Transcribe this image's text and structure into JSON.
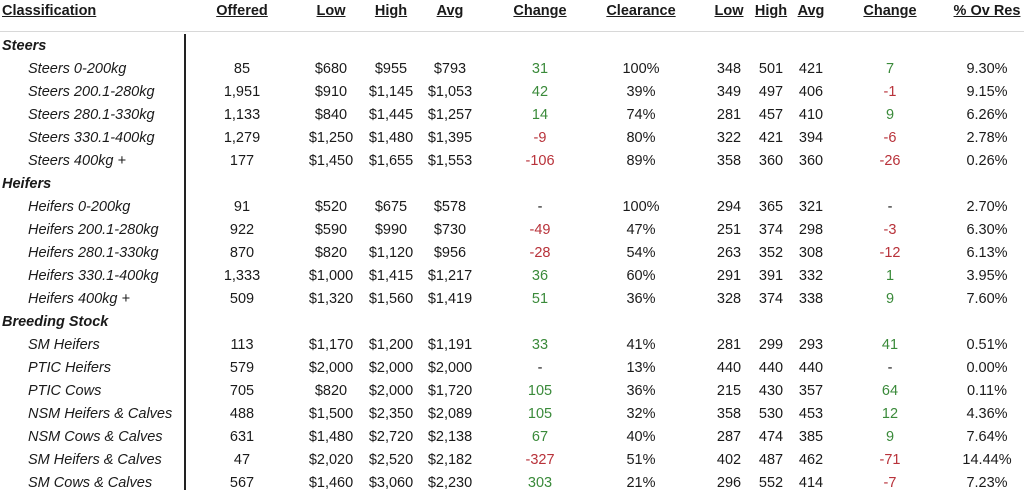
{
  "headers": {
    "classification": "Classification",
    "offered": "Offered",
    "low": "Low",
    "high": "High",
    "avg": "Avg",
    "change": "Change",
    "clearance": "Clearance",
    "ckg_low": "Low",
    "ckg_high": "High",
    "ckg_avg": "Avg",
    "ckg_change": "Change",
    "ov_res": "% Ov Res"
  },
  "rows": [
    {
      "type": "section",
      "name": "Steers"
    },
    {
      "type": "item",
      "name": "Steers 0-200kg",
      "offered": "85",
      "low": "$680",
      "high": "$955",
      "avg": "$793",
      "change": "31",
      "clearance": "100%",
      "ckg_low": "348",
      "ckg_high": "501",
      "ckg_avg": "421",
      "ckg_change": "7",
      "ov_res": "9.30%"
    },
    {
      "type": "item",
      "name": "Steers 200.1-280kg",
      "offered": "1,951",
      "low": "$910",
      "high": "$1,145",
      "avg": "$1,053",
      "change": "42",
      "clearance": "39%",
      "ckg_low": "349",
      "ckg_high": "497",
      "ckg_avg": "406",
      "ckg_change": "-1",
      "ov_res": "9.15%"
    },
    {
      "type": "item",
      "name": "Steers 280.1-330kg",
      "offered": "1,133",
      "low": "$840",
      "high": "$1,445",
      "avg": "$1,257",
      "change": "14",
      "clearance": "74%",
      "ckg_low": "281",
      "ckg_high": "457",
      "ckg_avg": "410",
      "ckg_change": "9",
      "ov_res": "6.26%"
    },
    {
      "type": "item",
      "name": "Steers 330.1-400kg",
      "offered": "1,279",
      "low": "$1,250",
      "high": "$1,480",
      "avg": "$1,395",
      "change": "-9",
      "clearance": "80%",
      "ckg_low": "322",
      "ckg_high": "421",
      "ckg_avg": "394",
      "ckg_change": "-6",
      "ov_res": "2.78%"
    },
    {
      "type": "item",
      "name": "Steers 400kg +",
      "offered": "177",
      "low": "$1,450",
      "high": "$1,655",
      "avg": "$1,553",
      "change": "-106",
      "clearance": "89%",
      "ckg_low": "358",
      "ckg_high": "360",
      "ckg_avg": "360",
      "ckg_change": "-26",
      "ov_res": "0.26%"
    },
    {
      "type": "section",
      "name": "Heifers"
    },
    {
      "type": "item",
      "name": "Heifers 0-200kg",
      "offered": "91",
      "low": "$520",
      "high": "$675",
      "avg": "$578",
      "change": "-",
      "clearance": "100%",
      "ckg_low": "294",
      "ckg_high": "365",
      "ckg_avg": "321",
      "ckg_change": "-",
      "ov_res": "2.70%"
    },
    {
      "type": "item",
      "name": "Heifers 200.1-280kg",
      "offered": "922",
      "low": "$590",
      "high": "$990",
      "avg": "$730",
      "change": "-49",
      "clearance": "47%",
      "ckg_low": "251",
      "ckg_high": "374",
      "ckg_avg": "298",
      "ckg_change": "-3",
      "ov_res": "6.30%"
    },
    {
      "type": "item",
      "name": "Heifers 280.1-330kg",
      "offered": "870",
      "low": "$820",
      "high": "$1,120",
      "avg": "$956",
      "change": "-28",
      "clearance": "54%",
      "ckg_low": "263",
      "ckg_high": "352",
      "ckg_avg": "308",
      "ckg_change": "-12",
      "ov_res": "6.13%"
    },
    {
      "type": "item",
      "name": "Heifers 330.1-400kg",
      "offered": "1,333",
      "low": "$1,000",
      "high": "$1,415",
      "avg": "$1,217",
      "change": "36",
      "clearance": "60%",
      "ckg_low": "291",
      "ckg_high": "391",
      "ckg_avg": "332",
      "ckg_change": "1",
      "ov_res": "3.95%"
    },
    {
      "type": "item",
      "name": "Heifers 400kg +",
      "offered": "509",
      "low": "$1,320",
      "high": "$1,560",
      "avg": "$1,419",
      "change": "51",
      "clearance": "36%",
      "ckg_low": "328",
      "ckg_high": "374",
      "ckg_avg": "338",
      "ckg_change": "9",
      "ov_res": "7.60%"
    },
    {
      "type": "section",
      "name": "Breeding Stock"
    },
    {
      "type": "item",
      "name": "SM Heifers",
      "offered": "113",
      "low": "$1,170",
      "high": "$1,200",
      "avg": "$1,191",
      "change": "33",
      "clearance": "41%",
      "ckg_low": "281",
      "ckg_high": "299",
      "ckg_avg": "293",
      "ckg_change": "41",
      "ov_res": "0.51%"
    },
    {
      "type": "item",
      "name": "PTIC Heifers",
      "offered": "579",
      "low": "$2,000",
      "high": "$2,000",
      "avg": "$2,000",
      "change": "-",
      "clearance": "13%",
      "ckg_low": "440",
      "ckg_high": "440",
      "ckg_avg": "440",
      "ckg_change": "-",
      "ov_res": "0.00%"
    },
    {
      "type": "item",
      "name": "PTIC Cows",
      "offered": "705",
      "low": "$820",
      "high": "$2,000",
      "avg": "$1,720",
      "change": "105",
      "clearance": "36%",
      "ckg_low": "215",
      "ckg_high": "430",
      "ckg_avg": "357",
      "ckg_change": "64",
      "ov_res": "0.11%"
    },
    {
      "type": "item",
      "name": "NSM Heifers & Calves",
      "offered": "488",
      "low": "$1,500",
      "high": "$2,350",
      "avg": "$2,089",
      "change": "105",
      "clearance": "32%",
      "ckg_low": "358",
      "ckg_high": "530",
      "ckg_avg": "453",
      "ckg_change": "12",
      "ov_res": "4.36%"
    },
    {
      "type": "item",
      "name": "NSM Cows & Calves",
      "offered": "631",
      "low": "$1,480",
      "high": "$2,720",
      "avg": "$2,138",
      "change": "67",
      "clearance": "40%",
      "ckg_low": "287",
      "ckg_high": "474",
      "ckg_avg": "385",
      "ckg_change": "9",
      "ov_res": "7.64%"
    },
    {
      "type": "item",
      "name": "SM Heifers & Calves",
      "offered": "47",
      "low": "$2,020",
      "high": "$2,520",
      "avg": "$2,182",
      "change": "-327",
      "clearance": "51%",
      "ckg_low": "402",
      "ckg_high": "487",
      "ckg_avg": "462",
      "ckg_change": "-71",
      "ov_res": "14.44%"
    },
    {
      "type": "item",
      "name": "SM Cows & Calves",
      "offered": "567",
      "low": "$1,460",
      "high": "$3,060",
      "avg": "$2,230",
      "change": "303",
      "clearance": "21%",
      "ckg_low": "296",
      "ckg_high": "552",
      "ckg_avg": "414",
      "ckg_change": "-7",
      "ov_res": "7.23%"
    }
  ],
  "colors": {
    "positive": "#3a8a3a",
    "negative": "#b8323a",
    "text": "#1a1a1a"
  }
}
